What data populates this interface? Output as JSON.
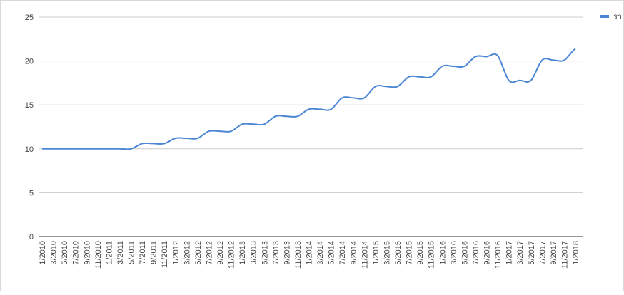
{
  "chart_data": {
    "type": "line",
    "categories": [
      "1/2010",
      "3/2010",
      "5/2010",
      "7/2010",
      "9/2010",
      "11/2010",
      "1/2011",
      "3/2011",
      "5/2011",
      "7/2011",
      "9/2011",
      "11/2011",
      "1/2012",
      "3/2012",
      "5/2012",
      "7/2012",
      "9/2012",
      "11/2012",
      "1/2013",
      "3/2013",
      "5/2013",
      "7/2013",
      "9/2013",
      "11/2013",
      "1/2014",
      "3/2014",
      "5/2014",
      "7/2014",
      "9/2014",
      "11/2014",
      "1/2015",
      "3/2015",
      "5/2015",
      "7/2015",
      "9/2015",
      "11/2015",
      "1/2016",
      "3/2016",
      "5/2016",
      "7/2016",
      "9/2016",
      "11/2016",
      "1/2017",
      "3/2017",
      "5/2017",
      "7/2017",
      "9/2017",
      "11/2017",
      "1/2018"
    ],
    "series": [
      {
        "name": "รา",
        "color": "#4a86d4",
        "values": [
          10,
          10,
          10,
          10,
          10,
          10,
          10,
          10,
          10,
          10.6,
          10.6,
          10.6,
          11.2,
          11.2,
          11.2,
          12.0,
          12.0,
          12.0,
          12.8,
          12.8,
          12.8,
          13.7,
          13.7,
          13.7,
          14.5,
          14.5,
          14.5,
          15.8,
          15.8,
          15.8,
          17.1,
          17.1,
          17.1,
          18.2,
          18.2,
          18.2,
          19.4,
          19.4,
          19.4,
          20.5,
          20.5,
          20.6,
          17.8,
          17.8,
          17.8,
          20.1,
          20.1,
          20.1,
          21.4
        ]
      }
    ],
    "ylim": [
      0,
      25
    ],
    "yticks": [
      0,
      5,
      10,
      15,
      20,
      25
    ],
    "grid": true,
    "legend": "top-right"
  }
}
